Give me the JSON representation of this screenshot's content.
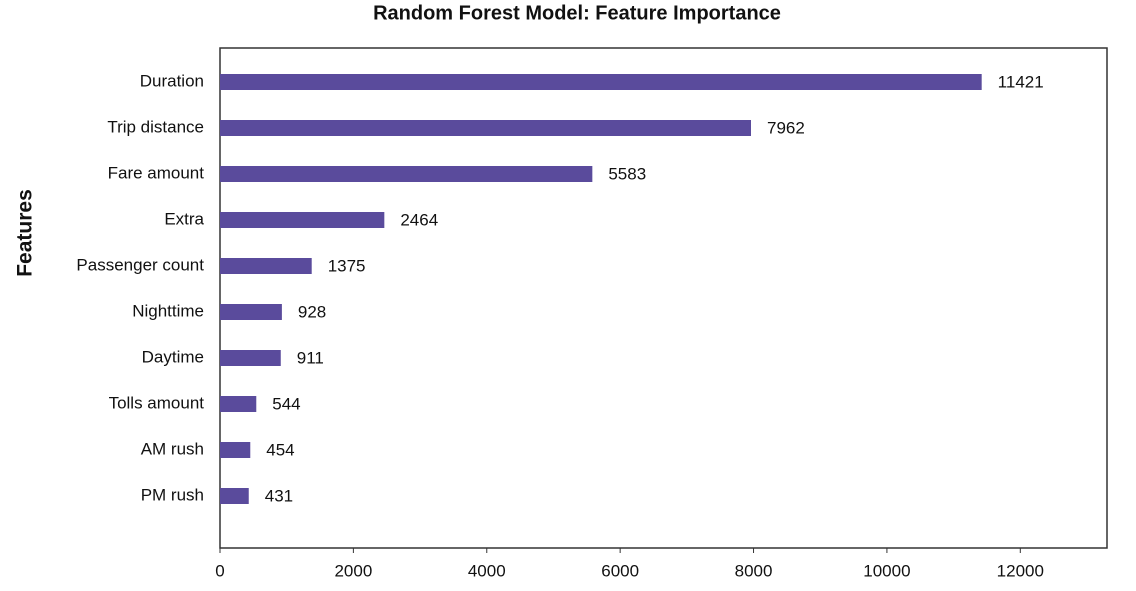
{
  "chart_data": {
    "type": "barh",
    "title": "Random Forest Model: Feature Importance",
    "y_label": "Features",
    "categories": [
      "Duration",
      "Trip distance",
      "Fare amount",
      "Extra",
      "Passenger count",
      "Nighttime",
      "Daytime",
      "Tolls amount",
      "AM rush",
      "PM rush"
    ],
    "values": [
      11421,
      7962,
      5583,
      2464,
      1375,
      928,
      911,
      544,
      454,
      431
    ],
    "color": "#5a4b9c",
    "xlim": [
      0,
      13300
    ],
    "xticks": [
      0,
      2000,
      4000,
      6000,
      8000,
      10000,
      12000
    ]
  }
}
